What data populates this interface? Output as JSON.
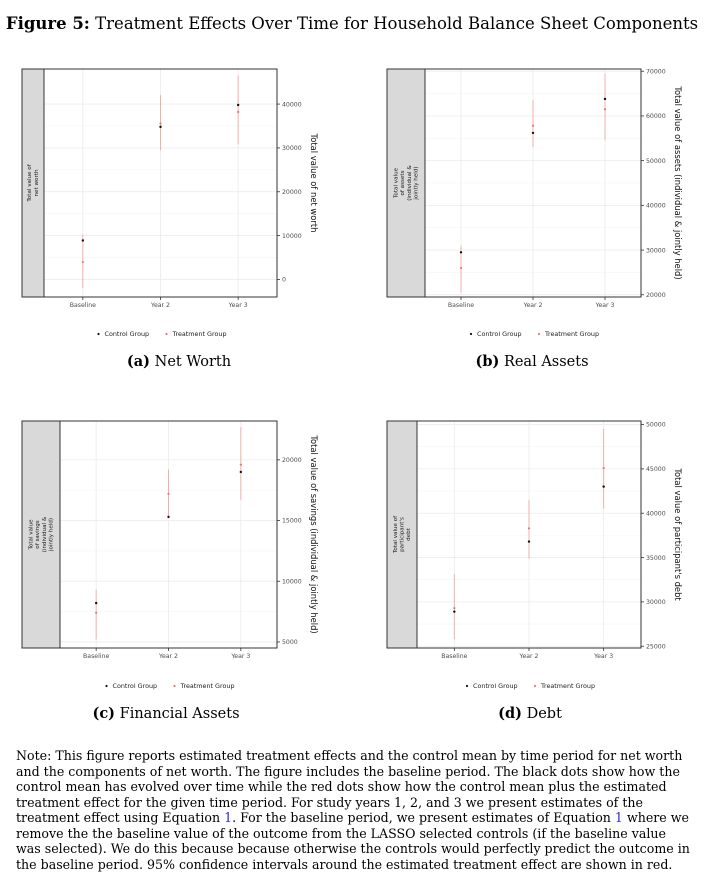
{
  "figure": {
    "label": "Figure 5:",
    "title": "Treatment Effects Over Time for Household Balance Sheet Components"
  },
  "colors": {
    "control": "#111111",
    "treatment": "#e8776c",
    "ci": "#f1a9a0",
    "strip": "#d9d9d9",
    "grid": "#ebebeb"
  },
  "legend": {
    "control": "Control Group",
    "treatment": "Treatment Group"
  },
  "chart_data": [
    {
      "type": "scatter",
      "panel_label": "(a)",
      "caption": "Net Worth",
      "strip_label": [
        "Total value of",
        "net worth"
      ],
      "ylabel": "Total value of net worth",
      "categories": [
        "Baseline",
        "Year 2",
        "Year 3"
      ],
      "ylim": [
        -4000,
        48000
      ],
      "yticks": [
        0,
        10000,
        20000,
        30000,
        40000
      ],
      "tick_labels": [
        "0",
        "10000",
        "20000",
        "30000",
        "40000"
      ],
      "series": [
        {
          "name": "Control Group",
          "values": [
            8900,
            34800,
            39800
          ]
        },
        {
          "name": "Treatment Group",
          "values": [
            4000,
            35600,
            38200
          ],
          "ci_low": [
            -2000,
            29500,
            30800
          ],
          "ci_high": [
            10200,
            42000,
            46500
          ]
        }
      ],
      "grid": true,
      "legend_position": "bottom"
    },
    {
      "type": "scatter",
      "panel_label": "(b)",
      "caption": "Real Assets",
      "strip_label": [
        "Total value",
        "of assets",
        "(individual &",
        "jointly held)"
      ],
      "ylabel": "Total value of assets (individual & jointly held)",
      "categories": [
        "Baseline",
        "Year 2",
        "Year 3"
      ],
      "ylim": [
        19500,
        70500
      ],
      "yticks": [
        20000,
        30000,
        40000,
        50000,
        60000,
        70000
      ],
      "tick_labels": [
        "20000",
        "30000",
        "40000",
        "50000",
        "60000",
        "70000"
      ],
      "series": [
        {
          "name": "Control Group",
          "values": [
            29500,
            56200,
            63800
          ]
        },
        {
          "name": "Treatment Group",
          "values": [
            26000,
            57800,
            61500
          ],
          "ci_low": [
            20500,
            53000,
            54500
          ],
          "ci_high": [
            31000,
            63500,
            69500
          ]
        }
      ],
      "grid": true,
      "legend_position": "bottom"
    },
    {
      "type": "scatter",
      "panel_label": "(c)",
      "caption": "Financial Assets",
      "strip_label": [
        "Total value",
        "of savings",
        "(individual &",
        "jointly held)"
      ],
      "ylabel": "Total value of savings (individual & jointly held)",
      "categories": [
        "Baseline",
        "Year 2",
        "Year 3"
      ],
      "ylim": [
        4500,
        23200
      ],
      "yticks": [
        5000,
        10000,
        15000,
        20000
      ],
      "tick_labels": [
        "5000",
        "10000",
        "15000",
        "20000"
      ],
      "series": [
        {
          "name": "Control Group",
          "values": [
            8200,
            15300,
            19000
          ]
        },
        {
          "name": "Treatment Group",
          "values": [
            7400,
            17200,
            19600
          ],
          "ci_low": [
            5200,
            15300,
            16700
          ],
          "ci_high": [
            9300,
            19200,
            22700
          ]
        }
      ],
      "grid": true,
      "legend_position": "bottom"
    },
    {
      "type": "scatter",
      "panel_label": "(d)",
      "caption": "Debt",
      "strip_label": [
        "Total value of",
        "participant's",
        "debt"
      ],
      "ylabel": "Total value of participant's debt",
      "categories": [
        "Baseline",
        "Year 2",
        "Year 3"
      ],
      "ylim": [
        24800,
        50400
      ],
      "yticks": [
        25000,
        30000,
        35000,
        40000,
        45000,
        50000
      ],
      "tick_labels": [
        "25000",
        "30000",
        "35000",
        "40000",
        "45000",
        "50000"
      ],
      "series": [
        {
          "name": "Control Group",
          "values": [
            28900,
            36800,
            43000
          ]
        },
        {
          "name": "Treatment Group",
          "values": [
            29300,
            38300,
            45100
          ],
          "ci_low": [
            25800,
            34900,
            40500
          ],
          "ci_high": [
            33100,
            41500,
            49500
          ]
        }
      ],
      "grid": true,
      "legend_position": "bottom"
    }
  ],
  "note": {
    "part1": "Note: This figure reports estimated treatment effects and the control mean by time period for net worth and the components of net worth. The figure includes the baseline period. The black dots show how the control mean has evolved over time while the red dots show how the control mean plus the estimated treatment effect for the given time period. For study years 1, 2, and 3 we present estimates of the treatment effect using Equation ",
    "eq1": "1",
    "part2": ". For the baseline period, we present estimates of Equation ",
    "eq2": "1",
    "part3": " where we remove the the baseline value of the outcome from the LASSO selected controls (if the baseline value was selected). We do this because because otherwise the controls would perfectly predict the outcome in the baseline period. 95% confidence intervals around the estimated treatment effect are shown in red."
  }
}
